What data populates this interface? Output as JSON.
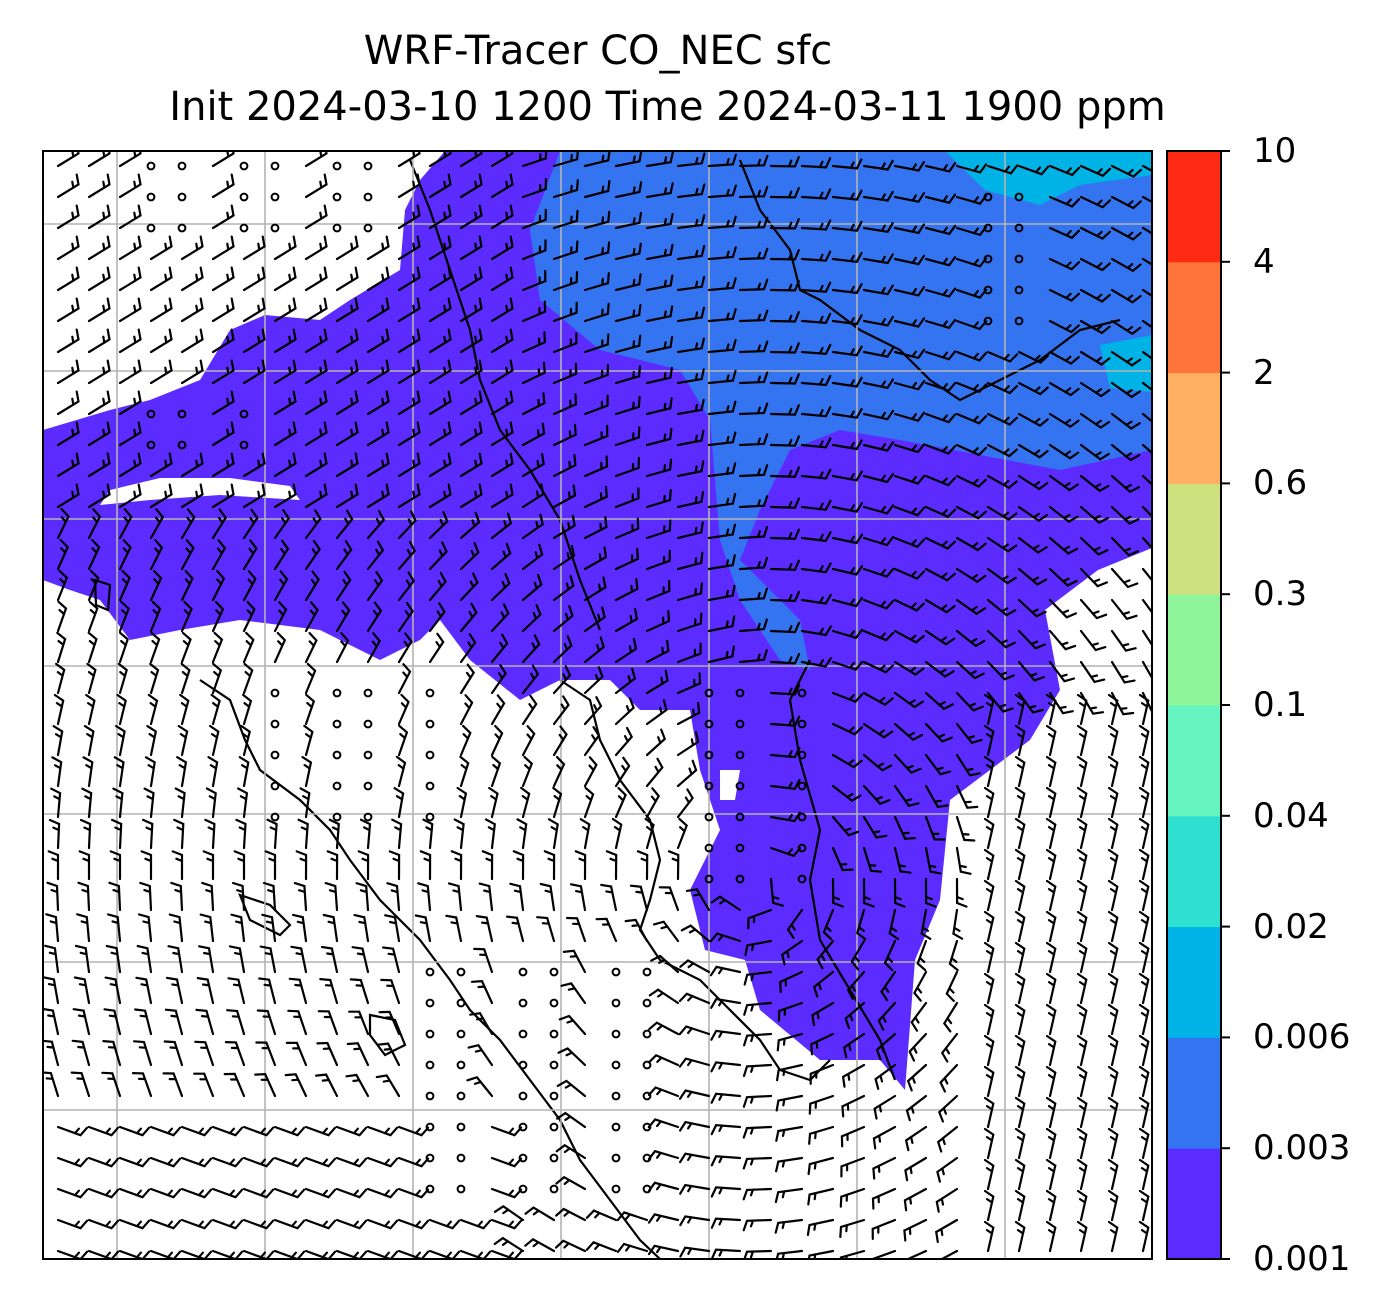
{
  "title": {
    "line1": "WRF-Tracer CO_NEC sfc",
    "line2": "Init 2024-03-10 1200 Time 2024-03-11 1900 ppm"
  },
  "colorbar": {
    "levels": [
      "0.001",
      "0.003",
      "0.006",
      "0.02",
      "0.04",
      "0.1",
      "0.3",
      "0.6",
      "2",
      "4",
      "10"
    ],
    "colors": [
      "#5b2bff",
      "#3574f0",
      "#00b3e6",
      "#2fdfcf",
      "#66f5c0",
      "#8ff59a",
      "#cfe07e",
      "#ffb060",
      "#ff7438",
      "#ff2a14"
    ]
  },
  "map": {
    "field_colors": {
      "lowest": "#5b2bff",
      "low": "#3574f0",
      "mid": "#00b3e6"
    },
    "grid_color": "#b3b3b3",
    "coastline_color": "#000000",
    "wind_symbols": [
      "wind-barb",
      "calm-circle"
    ]
  }
}
